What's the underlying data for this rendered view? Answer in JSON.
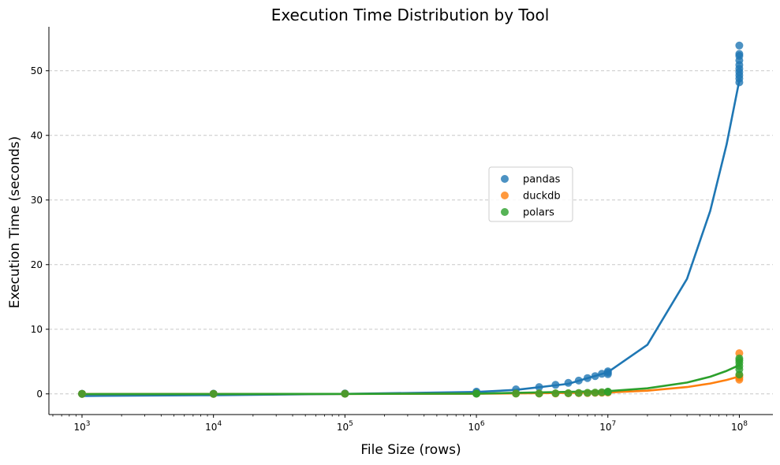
{
  "chart_data": {
    "type": "scatter",
    "title": "Execution Time Distribution by Tool",
    "xlabel": "File Size (rows)",
    "ylabel": "Execution Time (seconds)",
    "xscale": "log",
    "xlim": [
      560,
      180000000
    ],
    "ylim": [
      -3.2,
      56.8
    ],
    "x_ticks": [
      {
        "value": 1000,
        "base": "10",
        "exp": "3"
      },
      {
        "value": 10000,
        "base": "10",
        "exp": "4"
      },
      {
        "value": 100000,
        "base": "10",
        "exp": "5"
      },
      {
        "value": 1000000,
        "base": "10",
        "exp": "6"
      },
      {
        "value": 10000000,
        "base": "10",
        "exp": "7"
      },
      {
        "value": 100000000,
        "base": "10",
        "exp": "8"
      }
    ],
    "y_ticks": [
      0,
      10,
      20,
      30,
      40,
      50
    ],
    "grid": "y-dashed",
    "legend_position": "center-right",
    "series": [
      {
        "name": "pandas",
        "color": "#1f77b4",
        "points": [
          [
            1000,
            0.01
          ],
          [
            1000,
            0.02
          ],
          [
            10000,
            0.03
          ],
          [
            10000,
            0.02
          ],
          [
            100000,
            0.05
          ],
          [
            100000,
            0.06
          ],
          [
            1000000,
            0.2
          ],
          [
            1000000,
            0.35
          ],
          [
            2000000,
            0.7
          ],
          [
            3000000,
            1.05
          ],
          [
            4000000,
            1.4
          ],
          [
            5000000,
            1.7
          ],
          [
            6000000,
            2.05
          ],
          [
            7000000,
            2.45
          ],
          [
            8000000,
            2.75
          ],
          [
            9000000,
            3.1
          ],
          [
            10000000,
            3.05
          ],
          [
            10000000,
            3.3
          ],
          [
            10000000,
            3.5
          ],
          [
            100000000,
            48.2
          ],
          [
            100000000,
            48.8
          ],
          [
            100000000,
            49.3
          ],
          [
            100000000,
            49.8
          ],
          [
            100000000,
            50.3
          ],
          [
            100000000,
            50.9
          ],
          [
            100000000,
            51.6
          ],
          [
            100000000,
            52.3
          ],
          [
            100000000,
            52.6
          ],
          [
            100000000,
            53.9
          ]
        ],
        "trend": [
          [
            1000,
            -0.32
          ],
          [
            10000,
            -0.2
          ],
          [
            100000,
            0.0
          ],
          [
            1000000,
            0.3
          ],
          [
            2000000,
            0.62
          ],
          [
            5000000,
            1.56
          ],
          [
            10000000,
            3.36
          ],
          [
            20000000,
            7.6
          ],
          [
            40000000,
            17.8
          ],
          [
            60000000,
            28.3
          ],
          [
            80000000,
            38.6
          ],
          [
            100000000,
            48.5
          ]
        ]
      },
      {
        "name": "duckdb",
        "color": "#ff7f0e",
        "points": [
          [
            1000,
            0.01
          ],
          [
            10000,
            0.01
          ],
          [
            100000,
            0.02
          ],
          [
            1000000,
            0.03
          ],
          [
            2000000,
            0.04
          ],
          [
            3000000,
            0.05
          ],
          [
            4000000,
            0.06
          ],
          [
            5000000,
            0.08
          ],
          [
            6000000,
            0.1
          ],
          [
            7000000,
            0.12
          ],
          [
            8000000,
            0.15
          ],
          [
            9000000,
            0.18
          ],
          [
            10000000,
            0.2
          ],
          [
            100000000,
            2.2
          ],
          [
            100000000,
            2.5
          ],
          [
            100000000,
            2.8
          ],
          [
            100000000,
            6.3
          ]
        ],
        "trend": [
          [
            1000,
            -0.02
          ],
          [
            100000,
            0.0
          ],
          [
            1000000,
            0.02
          ],
          [
            10000000,
            0.22
          ],
          [
            20000000,
            0.5
          ],
          [
            40000000,
            1.05
          ],
          [
            60000000,
            1.6
          ],
          [
            80000000,
            2.15
          ],
          [
            100000000,
            2.7
          ]
        ]
      },
      {
        "name": "polars",
        "color": "#2ca02c",
        "points": [
          [
            1000,
            0.01
          ],
          [
            10000,
            0.01
          ],
          [
            100000,
            0.02
          ],
          [
            1000000,
            0.03
          ],
          [
            1000000,
            0.05
          ],
          [
            2000000,
            0.06
          ],
          [
            3000000,
            0.07
          ],
          [
            4000000,
            0.09
          ],
          [
            5000000,
            0.11
          ],
          [
            6000000,
            0.14
          ],
          [
            7000000,
            0.17
          ],
          [
            8000000,
            0.2
          ],
          [
            9000000,
            0.25
          ],
          [
            10000000,
            0.28
          ],
          [
            10000000,
            0.35
          ],
          [
            100000000,
            3.0
          ],
          [
            100000000,
            3.8
          ],
          [
            100000000,
            4.3
          ],
          [
            100000000,
            4.8
          ],
          [
            100000000,
            5.2
          ],
          [
            100000000,
            5.5
          ]
        ],
        "trend": [
          [
            1000,
            -0.03
          ],
          [
            100000,
            0.0
          ],
          [
            1000000,
            0.04
          ],
          [
            10000000,
            0.42
          ],
          [
            20000000,
            0.86
          ],
          [
            40000000,
            1.75
          ],
          [
            60000000,
            2.65
          ],
          [
            80000000,
            3.55
          ],
          [
            100000000,
            4.45
          ]
        ]
      }
    ]
  }
}
